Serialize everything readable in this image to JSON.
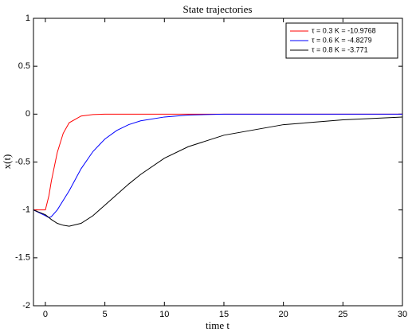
{
  "chart_data": {
    "type": "line",
    "title": "State trajectories",
    "x_label": "time t",
    "y_label": "x(t)",
    "x": [
      -1,
      0,
      0.3,
      0.5,
      1,
      1.5,
      2,
      3,
      4,
      5,
      6,
      7,
      8,
      10,
      12,
      15,
      20,
      25,
      30
    ],
    "series": [
      {
        "name": "τ = 0.3 K = -10.9768",
        "color": "#ff0000",
        "values": [
          -1,
          -1,
          -0.85,
          -0.7,
          -0.4,
          -0.2,
          -0.09,
          -0.02,
          -0.005,
          0,
          0,
          0,
          0,
          0,
          0,
          0,
          0,
          0,
          0
        ]
      },
      {
        "name": "τ = 0.6 K = -4.8279",
        "color": "#0000ff",
        "values": [
          -1,
          -1.06,
          -1.08,
          -1.07,
          -1.0,
          -0.9,
          -0.8,
          -0.57,
          -0.39,
          -0.26,
          -0.17,
          -0.11,
          -0.07,
          -0.03,
          -0.01,
          0,
          0,
          0,
          0
        ]
      },
      {
        "name": "τ = 0.8 K = -3.771",
        "color": "#000000",
        "values": [
          -1,
          -1.05,
          -1.08,
          -1.1,
          -1.14,
          -1.16,
          -1.17,
          -1.14,
          -1.06,
          -0.95,
          -0.84,
          -0.73,
          -0.63,
          -0.46,
          -0.34,
          -0.22,
          -0.11,
          -0.06,
          -0.03
        ]
      }
    ],
    "xlim": [
      -1,
      30
    ],
    "xticks": [
      0,
      5,
      10,
      15,
      20,
      25,
      30
    ],
    "ylim": [
      -2,
      1
    ],
    "yticks": [
      -2,
      -1.5,
      -1,
      -0.5,
      0,
      0.5,
      1
    ],
    "grid": false,
    "legend": "northeast"
  }
}
